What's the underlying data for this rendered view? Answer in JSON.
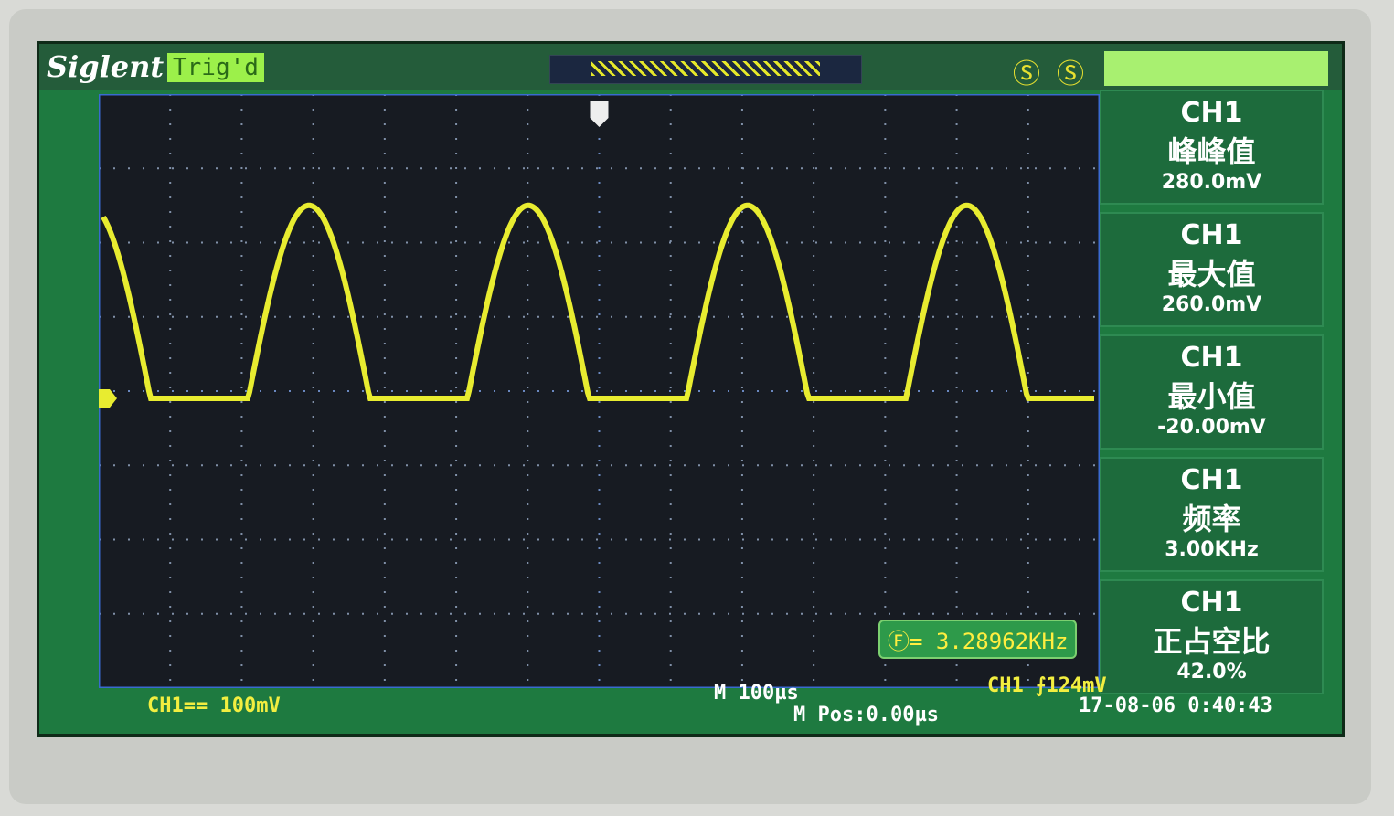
{
  "header": {
    "brand": "Siglent",
    "trigger_status": "Trig'd",
    "trace_color": "#e8ec30"
  },
  "measurements": [
    {
      "channel": "CH1",
      "label": "峰峰值",
      "value": "280.0mV"
    },
    {
      "channel": "CH1",
      "label": "最大值",
      "value": "260.0mV"
    },
    {
      "channel": "CH1",
      "label": "最小值",
      "value": "-20.00mV"
    },
    {
      "channel": "CH1",
      "label": "频率",
      "value": "3.00KHz"
    },
    {
      "channel": "CH1",
      "label": "正占空比",
      "value": "42.0%"
    }
  ],
  "counter": {
    "icon": "frequency-counter-icon",
    "value": "= 3.28962KHz"
  },
  "status": {
    "ch1_scale": "CH1== 100mV",
    "timebase": "M 100µs",
    "mpos": "M Pos:0.00µs",
    "trigger": "CH1 ⨍124mV",
    "datetime": "17-08-06 0:40:43"
  },
  "waveform": {
    "shape": "half-wave rectified sine",
    "frequency_khz": 3.0,
    "max_mv": 260,
    "min_mv": -20,
    "volts_per_div_mv": 100,
    "time_per_div_us": 100
  }
}
